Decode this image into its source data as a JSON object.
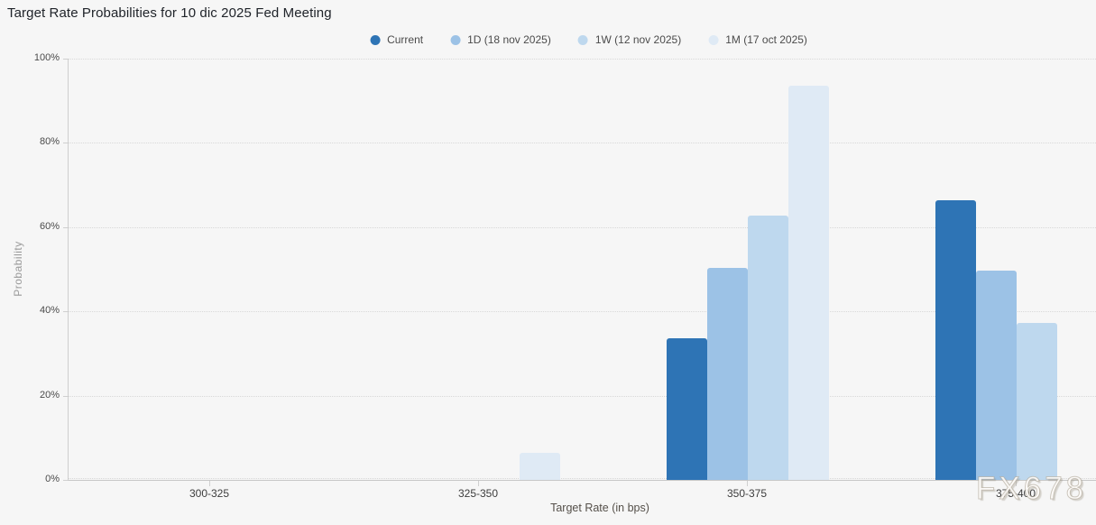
{
  "title": "Target Rate Probabilities for 10 dic 2025 Fed Meeting",
  "watermark": "FX678",
  "chart_data": {
    "type": "bar",
    "title": "Target Rate Probabilities for 10 dic 2025 Fed Meeting",
    "categories": [
      "300-325",
      "325-350",
      "350-375",
      "375-400"
    ],
    "series": [
      {
        "name": "Current",
        "color": "#2e74b5",
        "values": [
          0,
          0,
          33.6,
          66.4
        ]
      },
      {
        "name": "1D (18 nov 2025)",
        "color": "#9cc2e6",
        "values": [
          0,
          0,
          50.3,
          49.7
        ]
      },
      {
        "name": "1W (12 nov 2025)",
        "color": "#bed8ee",
        "values": [
          0,
          0,
          62.8,
          37.2
        ]
      },
      {
        "name": "1M (17 oct 2025)",
        "color": "#dfeaf5",
        "values": [
          0,
          6.4,
          93.6,
          0
        ]
      }
    ],
    "xlabel": "Target Rate (in bps)",
    "ylabel": "Probability",
    "ylim": [
      0,
      100
    ],
    "yticks": [
      {
        "value": 0,
        "label": "0%"
      },
      {
        "value": 20,
        "label": "20%"
      },
      {
        "value": 40,
        "label": "40%"
      },
      {
        "value": 60,
        "label": "60%"
      },
      {
        "value": 80,
        "label": "80%"
      },
      {
        "value": 100,
        "label": "100%"
      }
    ],
    "grid": "dotted-horizontal",
    "legend_position": "top-center",
    "background": "#f6f6f6"
  }
}
